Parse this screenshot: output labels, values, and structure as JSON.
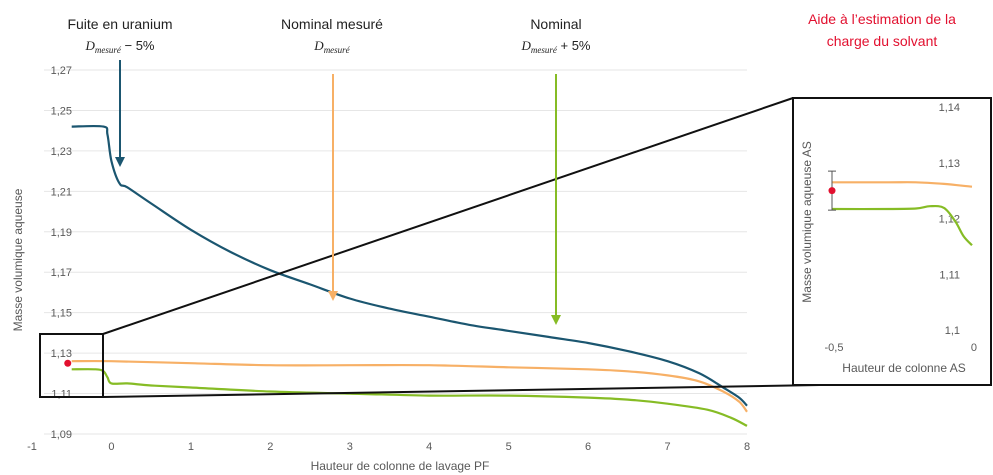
{
  "colors": {
    "fuite": "#1b5670",
    "nominal_mesure": "#f7b066",
    "nominal_plus": "#86bc25",
    "marker": "#e2102f",
    "help_text": "#e2102f",
    "grid": "#e6e6e6",
    "frame": "#111111"
  },
  "annotations": {
    "fuite": {
      "title": "Fuite en uranium",
      "math_base": "D",
      "math_sub": "mesuré",
      "math_suffix": " − 5%"
    },
    "nominal_mesure": {
      "title": "Nominal mesuré",
      "math_base": "D",
      "math_sub": "mesuré",
      "math_suffix": ""
    },
    "nominal_plus": {
      "title": "Nominal",
      "math_base": "D",
      "math_sub": "mesuré",
      "math_suffix": " + 5%"
    },
    "help": {
      "line1": "Aide à l’estimation de la",
      "line2": "charge du solvant"
    }
  },
  "chart_data": [
    {
      "type": "line",
      "xlabel": "Hauteur de colonne de lavage PF",
      "ylabel": "Masse volumique aqueuse",
      "xlim": [
        -1,
        8
      ],
      "ylim": [
        1.09,
        1.27
      ],
      "xticks": [
        -1,
        0,
        1,
        2,
        3,
        4,
        5,
        6,
        7,
        8
      ],
      "xtick_labels": [
        "-1",
        "0",
        "1",
        "2",
        "3",
        "4",
        "5",
        "6",
        "7",
        "8"
      ],
      "yticks": [
        1.09,
        1.11,
        1.13,
        1.15,
        1.17,
        1.19,
        1.21,
        1.23,
        1.25,
        1.27
      ],
      "ytick_labels": [
        "1,09",
        "1,11",
        "1,13",
        "1,15",
        "1,17",
        "1,19",
        "1,21",
        "1,23",
        "1,25",
        "1,27"
      ],
      "grid": "horizontal",
      "series": [
        {
          "key": "fuite",
          "x": [
            -0.5,
            -0.1,
            -0.05,
            0,
            0.1,
            0.2,
            0.5,
            1,
            1.5,
            2,
            2.5,
            3,
            3.5,
            4,
            4.5,
            5,
            5.5,
            6,
            6.5,
            7,
            7.4,
            7.7,
            7.9,
            8
          ],
          "y": [
            1.242,
            1.242,
            1.238,
            1.225,
            1.214,
            1.212,
            1.204,
            1.191,
            1.18,
            1.171,
            1.164,
            1.157,
            1.152,
            1.148,
            1.144,
            1.141,
            1.138,
            1.135,
            1.131,
            1.126,
            1.12,
            1.113,
            1.108,
            1.104
          ]
        },
        {
          "key": "nominal_mesure",
          "x": [
            -0.5,
            0,
            1,
            2,
            3,
            4,
            5,
            6,
            6.5,
            7,
            7.4,
            7.7,
            7.9,
            8
          ],
          "y": [
            1.126,
            1.126,
            1.125,
            1.124,
            1.124,
            1.124,
            1.123,
            1.122,
            1.121,
            1.119,
            1.116,
            1.111,
            1.106,
            1.101
          ]
        },
        {
          "key": "nominal_plus",
          "x": [
            -0.5,
            -0.2,
            -0.1,
            -0.05,
            0,
            0.2,
            0.5,
            1,
            2,
            3,
            4,
            5,
            6,
            6.5,
            7,
            7.5,
            7.8,
            8
          ],
          "y": [
            1.122,
            1.122,
            1.121,
            1.118,
            1.115,
            1.115,
            1.114,
            1.113,
            1.111,
            1.11,
            1.109,
            1.109,
            1.108,
            1.107,
            1.105,
            1.102,
            1.098,
            1.094
          ]
        }
      ],
      "point": {
        "x": -0.55,
        "y": 1.125
      }
    },
    {
      "type": "line",
      "xlabel": "Hauteur de colonne AS",
      "ylabel": "Masse volumique aqueuse AS",
      "xlim": [
        -0.5,
        0
      ],
      "ylim": [
        1.1,
        1.14
      ],
      "xticks": [
        -0.5,
        0
      ],
      "xtick_labels": [
        "-0,5",
        "0"
      ],
      "yticks": [
        1.1,
        1.11,
        1.12,
        1.13,
        1.14
      ],
      "ytick_labels": [
        "1,1",
        "1,11",
        "1,12",
        "1,13",
        "1,14"
      ],
      "grid": "none",
      "series": [
        {
          "key": "nominal_mesure",
          "x": [
            -0.5,
            -0.3,
            -0.2,
            -0.1,
            0
          ],
          "y": [
            1.1265,
            1.1265,
            1.1265,
            1.1262,
            1.1257
          ]
        },
        {
          "key": "nominal_plus",
          "x": [
            -0.5,
            -0.3,
            -0.2,
            -0.15,
            -0.1,
            -0.06,
            -0.03,
            0
          ],
          "y": [
            1.1217,
            1.1217,
            1.1218,
            1.1222,
            1.1219,
            1.1195,
            1.1168,
            1.1152
          ]
        }
      ],
      "point": {
        "x": -0.5,
        "y": 1.125,
        "err_low": 1.1215,
        "err_high": 1.1285
      }
    }
  ]
}
